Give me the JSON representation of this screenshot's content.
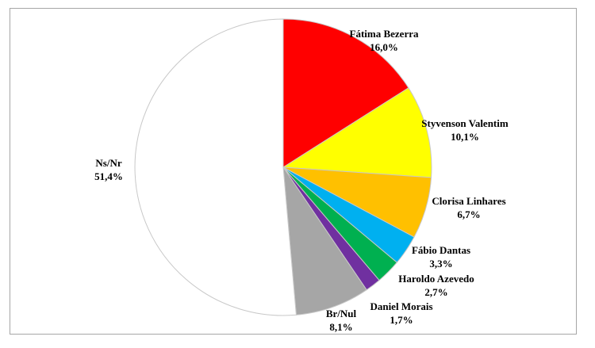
{
  "chart_data": {
    "type": "pie",
    "slices": [
      {
        "label": "Fátima Bezerra",
        "value": 16.0,
        "value_label": "16,0%",
        "color": "#ff0000"
      },
      {
        "label": "Styvenson Valentim",
        "value": 10.1,
        "value_label": "10,1%",
        "color": "#ffff00"
      },
      {
        "label": "Clorisa Linhares",
        "value": 6.7,
        "value_label": "6,7%",
        "color": "#ffc000"
      },
      {
        "label": "Fábio Dantas",
        "value": 3.3,
        "value_label": "3,3%",
        "color": "#00b0f0"
      },
      {
        "label": "Haroldo Azevedo",
        "value": 2.7,
        "value_label": "2,7%",
        "color": "#00b050"
      },
      {
        "label": "Daniel Morais",
        "value": 1.7,
        "value_label": "1,7%",
        "color": "#7030a0"
      },
      {
        "label": "Br/Nul",
        "value": 8.1,
        "value_label": "8,1%",
        "color": "#a6a6a6"
      },
      {
        "label": "Ns/Nr",
        "value": 51.4,
        "value_label": "51,4%",
        "color": "#ffffff"
      }
    ],
    "start_angle": "top",
    "direction": "clockwise",
    "legend": "none",
    "slice_border_color": "#c8c8c8"
  }
}
